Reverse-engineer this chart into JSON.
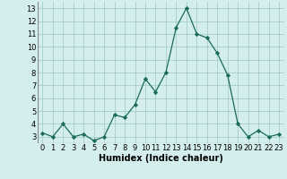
{
  "x": [
    0,
    1,
    2,
    3,
    4,
    5,
    6,
    7,
    8,
    9,
    10,
    11,
    12,
    13,
    14,
    15,
    16,
    17,
    18,
    19,
    20,
    21,
    22,
    23
  ],
  "y": [
    3.3,
    3.0,
    4.0,
    3.0,
    3.2,
    2.7,
    3.0,
    4.7,
    4.5,
    5.5,
    7.5,
    6.5,
    8.0,
    11.5,
    13.0,
    11.0,
    10.7,
    9.5,
    7.8,
    4.0,
    3.0,
    3.5,
    3.0,
    3.2
  ],
  "xlabel": "Humidex (Indice chaleur)",
  "ylim": [
    2.5,
    13.5
  ],
  "xlim": [
    -0.5,
    23.5
  ],
  "yticks": [
    3,
    4,
    5,
    6,
    7,
    8,
    9,
    10,
    11,
    12,
    13
  ],
  "xticks": [
    0,
    1,
    2,
    3,
    4,
    5,
    6,
    7,
    8,
    9,
    10,
    11,
    12,
    13,
    14,
    15,
    16,
    17,
    18,
    19,
    20,
    21,
    22,
    23
  ],
  "line_color": "#1a6b5a",
  "marker_color": "#1a6b5a",
  "bg_color": "#d4eeed",
  "grid_color": "#9dc8c4",
  "xlabel_fontsize": 7,
  "tick_fontsize": 6
}
